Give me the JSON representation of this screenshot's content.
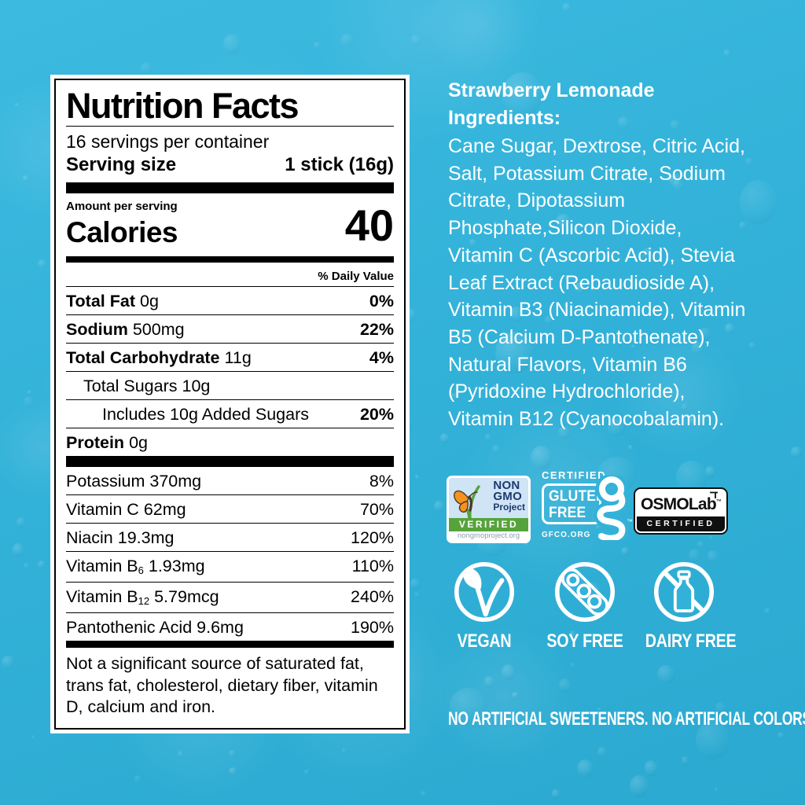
{
  "colors": {
    "background": "#33b2d9",
    "panel_bg": "#ffffff",
    "panel_ink": "#000000",
    "text_on_blue": "#ffffff",
    "nongmo_sky": "#cfe4f5",
    "nongmo_navy": "#1d3a6d",
    "nongmo_green": "#57a33b",
    "butterfly_orange": "#f6921e",
    "osmolab_ink": "#101010"
  },
  "nutrition_panel": {
    "title": "Nutrition Facts",
    "servings_per_container": "16 servings per container",
    "serving_size_label": "Serving size",
    "serving_size_value": "1 stick (16g)",
    "amount_per_serving": "Amount per serving",
    "calories_label": "Calories",
    "calories_value": "40",
    "daily_value_header": "% Daily Value",
    "main_rows": [
      {
        "name": "Total Fat",
        "amount": "0g",
        "dv": "0%",
        "indent": 0,
        "bold": true,
        "dv_bold": true
      },
      {
        "name": "Sodium",
        "amount": "500mg",
        "dv": "22%",
        "indent": 0,
        "bold": true,
        "dv_bold": true
      },
      {
        "name": "Total Carbohydrate",
        "amount": "11g",
        "dv": "4%",
        "indent": 0,
        "bold": true,
        "dv_bold": true
      },
      {
        "name": "Total Sugars",
        "amount": "10g",
        "dv": "",
        "indent": 1,
        "bold": false,
        "dv_bold": false
      },
      {
        "name": "Includes 10g Added Sugars",
        "amount": "",
        "dv": "20%",
        "indent": 2,
        "bold": false,
        "dv_bold": true
      },
      {
        "name": "Protein",
        "amount": "0g",
        "dv": "",
        "indent": 0,
        "bold": true,
        "dv_bold": false
      }
    ],
    "vitamin_rows": [
      {
        "name": "Potassium",
        "sub": "",
        "amount": "370mg",
        "dv": "8%"
      },
      {
        "name": "Vitamin C",
        "sub": "",
        "amount": "62mg",
        "dv": "70%"
      },
      {
        "name": "Niacin",
        "sub": "",
        "amount": "19.3mg",
        "dv": "120%"
      },
      {
        "name": "Vitamin B",
        "sub": "6",
        "amount": "1.93mg",
        "dv": "110%"
      },
      {
        "name": "Vitamin B",
        "sub": "12",
        "amount": "5.79mcg",
        "dv": "240%"
      },
      {
        "name": "Pantothenic Acid",
        "sub": "",
        "amount": "9.6mg",
        "dv": "190%"
      }
    ],
    "footnote": "Not a significant source of saturated fat, trans fat, cholesterol, dietary fiber, vitamin D, calcium and iron."
  },
  "ingredients": {
    "heading_lines": [
      "Strawberry Lemonade",
      "Ingredients:"
    ],
    "lines": [
      "Cane Sugar, Dextrose, Citric Acid,",
      "Salt, Potassium Citrate, Sodium",
      "Citrate, Dipotassium",
      "Phosphate,Silicon Dioxide,",
      "Vitamin C (Ascorbic Acid), Stevia",
      "Leaf Extract (Rebaudioside A),",
      "Vitamin B3 (Niacinamide), Vitamin",
      "B5 (Calcium D-Pantothenate),",
      "Natural Flavors, Vitamin B6",
      "(Pyridoxine Hydrochloride),",
      "Vitamin B12 (Cyanocobalamin)."
    ]
  },
  "badges": {
    "non_gmo": {
      "line1": "NON",
      "line2": "GMO",
      "line3": "Project",
      "verified": "VERIFIED",
      "url": "nongmoproject.org"
    },
    "gluten_free": {
      "certified": "CERTIFIED",
      "line1": "GLUTEN",
      "line2": "FREE",
      "org": "GFCO.ORG",
      "tm": "™"
    },
    "osmolab": {
      "name": "OSMOLab",
      "tm": "™",
      "certified": "CERTIFIED"
    }
  },
  "diet_icons": [
    {
      "label": "VEGAN",
      "icon": "vegan-leaf-check"
    },
    {
      "label": "SOY FREE",
      "icon": "no-soy"
    },
    {
      "label": "DAIRY FREE",
      "icon": "no-dairy"
    }
  ],
  "tagline": "NO ARTIFICIAL SWEETENERS. NO ARTIFICIAL COLORS."
}
